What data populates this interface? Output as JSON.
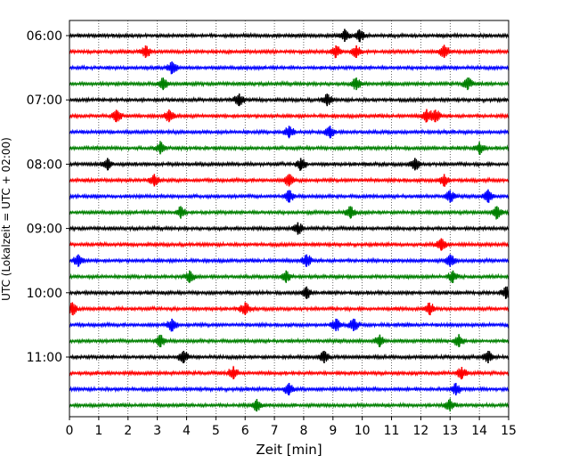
{
  "chart_data": {
    "type": "line",
    "title": "",
    "xlabel": "Zeit  [min]",
    "ylabel": "UTC (Lokalzeit = UTC + 02:00)",
    "xlim": [
      0,
      15
    ],
    "x_ticks": [
      "0",
      "1",
      "2",
      "3",
      "4",
      "5",
      "6",
      "7",
      "8",
      "9",
      "10",
      "11",
      "12",
      "13",
      "14",
      "15"
    ],
    "y_tick_labels": [
      "06:00",
      "07:00",
      "08:00",
      "09:00",
      "10:00",
      "11:00"
    ],
    "row_interval_minutes": 15,
    "grid": "vertical dotted",
    "color_cycle": [
      "#000000",
      "#ff0000",
      "#0000ff",
      "#008000"
    ],
    "traces": [
      {
        "start": "06:00",
        "events": [
          9.4,
          9.9
        ]
      },
      {
        "start": "06:15",
        "events": [
          2.6,
          9.1,
          9.8,
          12.8
        ]
      },
      {
        "start": "06:30",
        "events": [
          3.5
        ]
      },
      {
        "start": "06:45",
        "events": [
          3.2,
          9.8,
          13.6
        ]
      },
      {
        "start": "07:00",
        "events": [
          5.8,
          8.8
        ]
      },
      {
        "start": "07:15",
        "events": [
          1.6,
          3.4,
          12.2,
          12.5
        ]
      },
      {
        "start": "07:30",
        "events": [
          7.5,
          8.9
        ]
      },
      {
        "start": "07:45",
        "events": [
          3.1,
          14.0
        ]
      },
      {
        "start": "08:00",
        "events": [
          1.3,
          7.9,
          11.8
        ]
      },
      {
        "start": "08:15",
        "events": [
          2.9,
          7.5,
          12.8
        ]
      },
      {
        "start": "08:30",
        "events": [
          7.5,
          13.0,
          14.3
        ]
      },
      {
        "start": "08:45",
        "events": [
          3.8,
          9.6,
          14.6
        ]
      },
      {
        "start": "09:00",
        "events": [
          7.8
        ]
      },
      {
        "start": "09:15",
        "events": [
          12.7
        ]
      },
      {
        "start": "09:30",
        "events": [
          0.3,
          8.1,
          13.0
        ]
      },
      {
        "start": "09:45",
        "events": [
          4.1,
          7.4,
          13.1
        ]
      },
      {
        "start": "10:00",
        "events": [
          8.1,
          14.9
        ]
      },
      {
        "start": "10:15",
        "events": [
          0.1,
          6.0,
          12.3
        ]
      },
      {
        "start": "10:30",
        "events": [
          3.5,
          9.1,
          9.7
        ]
      },
      {
        "start": "10:45",
        "events": [
          3.1,
          10.6,
          13.3
        ]
      },
      {
        "start": "11:00",
        "events": [
          3.9,
          8.7,
          14.3
        ]
      },
      {
        "start": "11:15",
        "events": [
          5.6,
          13.4
        ]
      },
      {
        "start": "11:30",
        "events": [
          7.5,
          13.2
        ]
      },
      {
        "start": "11:45",
        "events": [
          6.4,
          13.0
        ]
      }
    ]
  }
}
